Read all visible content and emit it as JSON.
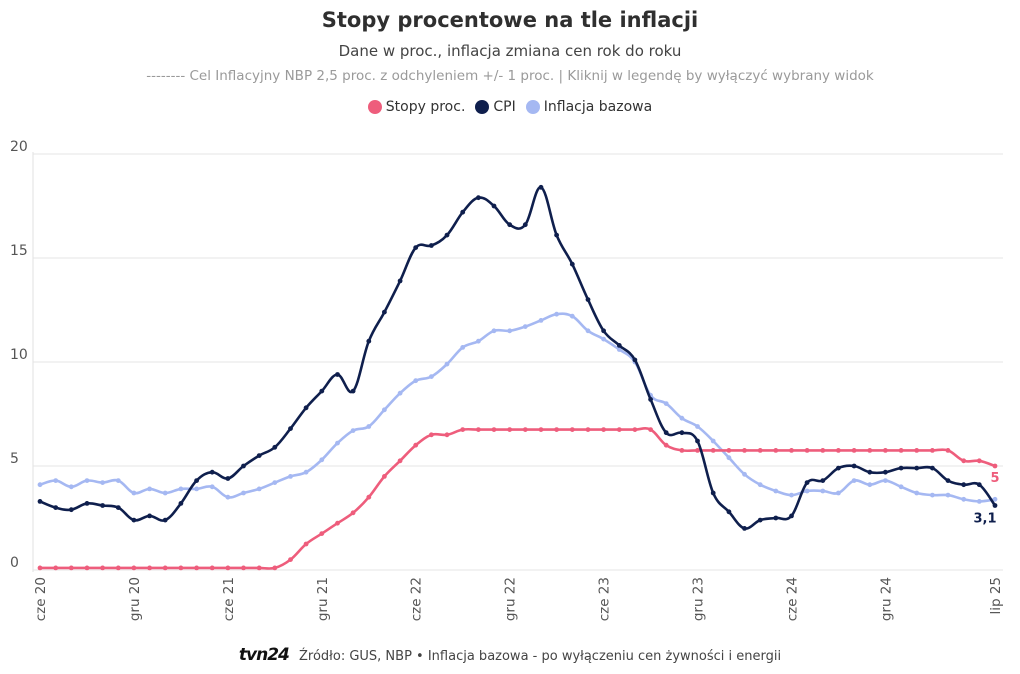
{
  "header": {
    "title": "Stopy procentowe na tle inflacji",
    "subtitle": "Dane w proc., inflacja zmiana cen rok do roku",
    "note": "-------- Cel Inflacyjny NBP 2,5 proc. z odchyleniem +/- 1 proc. | Kliknij w legendę by wyłączyć wybrany widok"
  },
  "footer": {
    "logo": "tvn24",
    "source": "Źródło: GUS, NBP • Inflacja bazowa - po wyłączeniu cen żywności i energii"
  },
  "colors": {
    "rates": "#ee5d7c",
    "cpi": "#0f1f4d",
    "core": "#a5b8f2",
    "grid": "#e6e6e6"
  },
  "chart_data": {
    "type": "line",
    "ylim": [
      0,
      20
    ],
    "yticks": [
      0,
      5,
      10,
      15,
      20
    ],
    "xticks": [
      {
        "index": 0,
        "label": "cze 20"
      },
      {
        "index": 6,
        "label": "gru 20"
      },
      {
        "index": 12,
        "label": "cze 21"
      },
      {
        "index": 18,
        "label": "gru 21"
      },
      {
        "index": 24,
        "label": "cze 22"
      },
      {
        "index": 30,
        "label": "gru 22"
      },
      {
        "index": 36,
        "label": "cze 23"
      },
      {
        "index": 42,
        "label": "gru 23"
      },
      {
        "index": 48,
        "label": "cze 24"
      },
      {
        "index": 54,
        "label": "gru 24"
      },
      {
        "index": 61,
        "label": "lip 25"
      }
    ],
    "n_points": 62,
    "series": [
      {
        "name": "Stopy proc.",
        "key": "rates",
        "end_label": "5",
        "values": [
          0.1,
          0.1,
          0.1,
          0.1,
          0.1,
          0.1,
          0.1,
          0.1,
          0.1,
          0.1,
          0.1,
          0.1,
          0.1,
          0.1,
          0.1,
          0.1,
          0.5,
          1.25,
          1.75,
          2.25,
          2.75,
          3.5,
          4.5,
          5.25,
          6.0,
          6.5,
          6.5,
          6.75,
          6.75,
          6.75,
          6.75,
          6.75,
          6.75,
          6.75,
          6.75,
          6.75,
          6.75,
          6.75,
          6.75,
          6.75,
          6.0,
          5.75,
          5.75,
          5.75,
          5.75,
          5.75,
          5.75,
          5.75,
          5.75,
          5.75,
          5.75,
          5.75,
          5.75,
          5.75,
          5.75,
          5.75,
          5.75,
          5.75,
          5.75,
          5.25,
          5.25,
          5.0
        ]
      },
      {
        "name": "CPI",
        "key": "cpi",
        "end_label": "3,1",
        "values": [
          3.3,
          3.0,
          2.9,
          3.2,
          3.1,
          3.0,
          2.4,
          2.6,
          2.4,
          3.2,
          4.3,
          4.7,
          4.4,
          5.0,
          5.5,
          5.9,
          6.8,
          7.8,
          8.6,
          9.4,
          8.6,
          11.0,
          12.4,
          13.9,
          15.5,
          15.6,
          16.1,
          17.2,
          17.9,
          17.5,
          16.6,
          16.6,
          18.4,
          16.1,
          14.7,
          13.0,
          11.5,
          10.8,
          10.1,
          8.2,
          6.6,
          6.6,
          6.2,
          3.7,
          2.8,
          2.0,
          2.4,
          2.5,
          2.6,
          4.2,
          4.3,
          4.9,
          5.0,
          4.7,
          4.7,
          4.9,
          4.9,
          4.9,
          4.3,
          4.1,
          4.1,
          3.1
        ]
      },
      {
        "name": "Inflacja bazowa",
        "key": "core",
        "end_label": "",
        "values": [
          4.1,
          4.3,
          4.0,
          4.3,
          4.2,
          4.3,
          3.7,
          3.9,
          3.7,
          3.9,
          3.9,
          4.0,
          3.5,
          3.7,
          3.9,
          4.2,
          4.5,
          4.7,
          5.3,
          6.1,
          6.7,
          6.9,
          7.7,
          8.5,
          9.1,
          9.3,
          9.9,
          10.7,
          11.0,
          11.5,
          11.5,
          11.7,
          12.0,
          12.3,
          12.2,
          11.5,
          11.1,
          10.6,
          10.0,
          8.4,
          8.0,
          7.3,
          6.9,
          6.2,
          5.4,
          4.6,
          4.1,
          3.8,
          3.6,
          3.8,
          3.8,
          3.7,
          4.3,
          4.1,
          4.3,
          4.0,
          3.7,
          3.6,
          3.6,
          3.4,
          3.3,
          3.4
        ]
      }
    ]
  }
}
